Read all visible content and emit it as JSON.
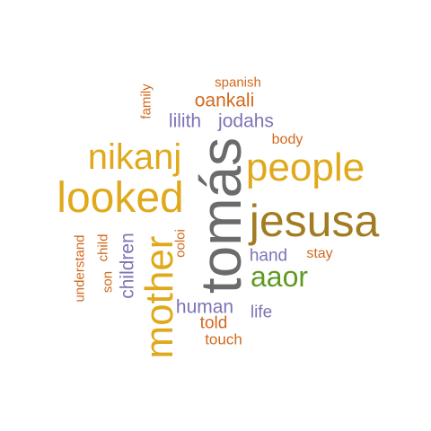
{
  "palette": {
    "gray": "#6b6b6b",
    "gold": "#e0a91c",
    "brown": "#a27c22",
    "orange": "#d2691e",
    "purple": "#7b74b5",
    "green": "#5f9a22"
  },
  "words": [
    {
      "text": "tomás",
      "color": "gray"
    },
    {
      "text": "jesusa",
      "color": "brown"
    },
    {
      "text": "looked",
      "color": "gold"
    },
    {
      "text": "people",
      "color": "gold"
    },
    {
      "text": "mother",
      "color": "gold"
    },
    {
      "text": "nikanj",
      "color": "gold"
    },
    {
      "text": "aaor",
      "color": "green"
    },
    {
      "text": "oankali",
      "color": "orange"
    },
    {
      "text": "lilith",
      "color": "purple"
    },
    {
      "text": "jodahs",
      "color": "purple"
    },
    {
      "text": "children",
      "color": "purple"
    },
    {
      "text": "human",
      "color": "purple"
    },
    {
      "text": "hand",
      "color": "purple"
    },
    {
      "text": "life",
      "color": "purple"
    },
    {
      "text": "told",
      "color": "orange"
    },
    {
      "text": "touch",
      "color": "orange"
    },
    {
      "text": "body",
      "color": "orange"
    },
    {
      "text": "stay",
      "color": "orange"
    },
    {
      "text": "spanish",
      "color": "orange"
    },
    {
      "text": "family",
      "color": "orange"
    },
    {
      "text": "ooloi",
      "color": "orange"
    },
    {
      "text": "son",
      "color": "orange"
    },
    {
      "text": "child",
      "color": "orange"
    },
    {
      "text": "understand",
      "color": "orange"
    }
  ]
}
